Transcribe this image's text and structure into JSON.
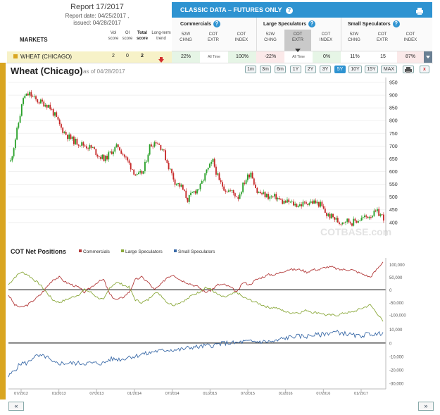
{
  "report": {
    "title": "Report 17/2017",
    "report_date": "Report date: 04/25/2017 ,",
    "issued": "issued: 04/28/2017"
  },
  "markets_header": {
    "markets": "MARKETS",
    "vol_score": "Vol score",
    "oi_score": "OI score",
    "total_score": "Total score",
    "long_term_trend": "Long-term trend"
  },
  "classic": {
    "title": "CLASSIC DATA – FUTURES ONLY",
    "groups": [
      "Commercials",
      "Large Speculators",
      "Small Speculators"
    ],
    "col_52w": "52W CHNG",
    "col_extr": "COT EXTR",
    "col_index": "COT INDEX"
  },
  "row": {
    "market": "WHEAT (CHICAGO)",
    "vol": "2",
    "oi": "0",
    "total": "2",
    "comm_52w": "22%",
    "comm_extr": "All Time",
    "comm_index": "100%",
    "large_52w": "-22%",
    "large_extr": "All Time",
    "large_index": "0%",
    "small_52w": "11%",
    "small_extr": "15",
    "small_index": "87%"
  },
  "chart_header": {
    "title": "Wheat (Chicago)",
    "asof": "as of 04/28/2017",
    "ranges": [
      "1m",
      "3m",
      "6m",
      "1Y",
      "2Y",
      "3Y",
      "5Y",
      "10Y",
      "15Y",
      "MAX"
    ],
    "active_range": "5Y"
  },
  "watermark": "COTBASE.com",
  "cot_title": "COT Net Positions",
  "colors": {
    "up": "#2aa12a",
    "down": "#c62828",
    "commercials": "#b33a3a",
    "large": "#8aa83a",
    "small": "#3a6aa8",
    "accent": "#2e93d1",
    "side": "#d9a520"
  },
  "chart_data": [
    {
      "type": "candlestick",
      "title": "Wheat (Chicago)",
      "ylim": [
        380,
        950
      ],
      "yticks": [
        "950",
        "900",
        "850",
        "800",
        "750",
        "700",
        "650",
        "600",
        "550",
        "500",
        "450",
        "400"
      ],
      "x": [
        "2012-05",
        "2012-06",
        "2012-07",
        "2012-08",
        "2012-09",
        "2012-10",
        "2012-11",
        "2012-12",
        "2013-01",
        "2013-02",
        "2013-03",
        "2013-04",
        "2013-05",
        "2013-06",
        "2013-07",
        "2013-08",
        "2013-09",
        "2013-10",
        "2013-11",
        "2013-12",
        "2014-01",
        "2014-02",
        "2014-03",
        "2014-04",
        "2014-05",
        "2014-06",
        "2014-07",
        "2014-08",
        "2014-09",
        "2014-10",
        "2014-11",
        "2014-12",
        "2015-01",
        "2015-02",
        "2015-03",
        "2015-04",
        "2015-05",
        "2015-06",
        "2015-07",
        "2015-08",
        "2015-09",
        "2015-10",
        "2015-11",
        "2015-12",
        "2016-01",
        "2016-02",
        "2016-03",
        "2016-04",
        "2016-05",
        "2016-06",
        "2016-07",
        "2016-08",
        "2016-09",
        "2016-10",
        "2016-11",
        "2016-12",
        "2017-01",
        "2017-02",
        "2017-03",
        "2017-04"
      ],
      "close": [
        640,
        760,
        890,
        905,
        880,
        870,
        860,
        820,
        770,
        740,
        720,
        710,
        700,
        690,
        660,
        650,
        680,
        700,
        660,
        620,
        580,
        600,
        700,
        720,
        690,
        620,
        560,
        540,
        490,
        520,
        540,
        600,
        640,
        560,
        530,
        520,
        500,
        560,
        600,
        520,
        510,
        500,
        500,
        480,
        480,
        470,
        470,
        480,
        480,
        470,
        430,
        420,
        400,
        410,
        400,
        410,
        420,
        430,
        440,
        420
      ]
    },
    {
      "type": "line",
      "title": "COT Net Positions",
      "series": [
        {
          "name": "Commercials",
          "values": [
            -20,
            -60,
            -70,
            -60,
            -40,
            -20,
            10,
            40,
            50,
            30,
            20,
            10,
            -10,
            10,
            30,
            40,
            -20,
            -40,
            -30,
            -10,
            40,
            50,
            30,
            0,
            20,
            50,
            60,
            40,
            30,
            20,
            10,
            -10,
            0,
            20,
            20,
            10,
            -10,
            30,
            20,
            40,
            50,
            60,
            60,
            70,
            80,
            80,
            80,
            70,
            80,
            80,
            90,
            90,
            80,
            80,
            80,
            70,
            60,
            50,
            80,
            110
          ]
        },
        {
          "name": "Large Speculators",
          "values": [
            20,
            50,
            70,
            60,
            40,
            20,
            -10,
            -40,
            -50,
            -40,
            -30,
            -20,
            0,
            -10,
            -30,
            -40,
            10,
            30,
            20,
            10,
            -40,
            -50,
            -40,
            -10,
            -20,
            -50,
            -60,
            -50,
            -40,
            -20,
            -10,
            10,
            0,
            -20,
            -30,
            -20,
            -10,
            -30,
            -40,
            -50,
            -60,
            -70,
            -70,
            -80,
            -90,
            -90,
            -90,
            -80,
            -90,
            -90,
            -100,
            -100,
            -100,
            -90,
            -90,
            -80,
            -70,
            -60,
            -90,
            -125
          ]
        },
        {
          "name": "Small Speculators",
          "values": [
            -25,
            -20,
            -15,
            -15,
            -10,
            -10,
            -10,
            -15,
            -15,
            -15,
            -15,
            -15,
            -15,
            -15,
            -15,
            -15,
            -12,
            -12,
            -12,
            -10,
            -10,
            -8,
            -8,
            -6,
            -6,
            -5,
            -5,
            -5,
            -4,
            -3,
            -3,
            -2,
            -2,
            -1,
            0,
            0,
            0,
            1,
            1,
            1,
            1,
            1,
            1,
            3,
            4,
            5,
            5,
            5,
            6,
            6,
            7,
            8,
            8,
            7,
            6,
            5,
            6,
            7,
            6,
            8
          ]
        }
      ],
      "upper_yticks": [
        "100,000",
        "50,000",
        "0",
        "-50,000",
        "-100,000"
      ],
      "lower_yticks": [
        "10,000",
        "0",
        "-10,000",
        "-20,000",
        "-30,000"
      ],
      "xticks": [
        "07/2012",
        "01/2013",
        "07/2013",
        "01/2014",
        "07/2014",
        "01/2015",
        "07/2015",
        "01/2016",
        "07/2016",
        "01/2017"
      ]
    }
  ]
}
